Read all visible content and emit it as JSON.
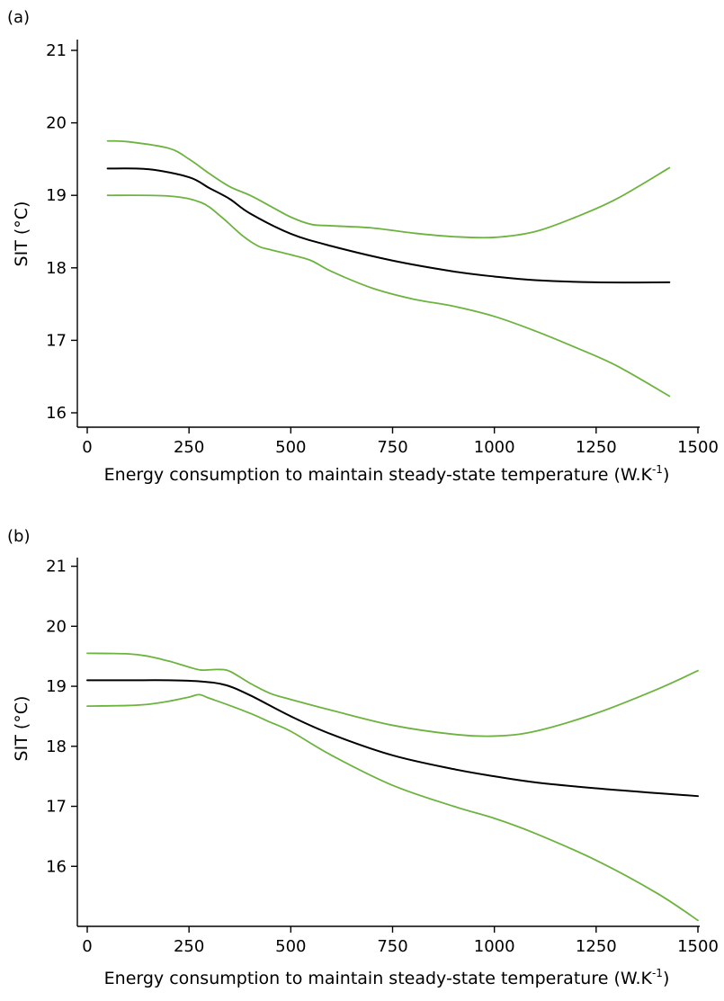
{
  "chart_data": [
    {
      "panel_label": "(a)",
      "type": "line",
      "xlabel": "Energy consumption to maintain steady-state temperature (W.K",
      "xlabel_sup": "-1",
      "xlabel_end": ")",
      "ylabel": "SIT (°C)",
      "xlim": [
        0,
        1500
      ],
      "ylim": [
        16,
        21
      ],
      "xticks": [
        0,
        250,
        500,
        750,
        1000,
        1250,
        1500
      ],
      "yticks": [
        16,
        17,
        18,
        19,
        20,
        21
      ],
      "colors": {
        "estimate": "#000000",
        "bounds": "#6db33f"
      },
      "series": [
        {
          "role": "estimate",
          "x": [
            50,
            150,
            250,
            300,
            350,
            400,
            500,
            600,
            750,
            900,
            1000,
            1100,
            1250,
            1430
          ],
          "y": [
            19.37,
            19.36,
            19.25,
            19.1,
            18.95,
            18.75,
            18.47,
            18.3,
            18.1,
            17.95,
            17.88,
            17.83,
            17.8,
            17.8
          ]
        },
        {
          "role": "upper-bound",
          "x": [
            50,
            100,
            200,
            250,
            300,
            350,
            400,
            450,
            500,
            550,
            600,
            700,
            800,
            900,
            1000,
            1100,
            1200,
            1300,
            1430
          ],
          "y": [
            19.75,
            19.74,
            19.65,
            19.5,
            19.3,
            19.12,
            19.0,
            18.85,
            18.7,
            18.6,
            18.58,
            18.55,
            18.48,
            18.43,
            18.42,
            18.5,
            18.7,
            18.95,
            19.38
          ]
        },
        {
          "role": "lower-bound",
          "x": [
            50,
            200,
            280,
            330,
            380,
            420,
            450,
            500,
            550,
            600,
            700,
            800,
            900,
            1000,
            1100,
            1200,
            1300,
            1430
          ],
          "y": [
            19.0,
            18.99,
            18.9,
            18.7,
            18.45,
            18.3,
            18.25,
            18.18,
            18.1,
            17.95,
            17.72,
            17.57,
            17.47,
            17.33,
            17.13,
            16.9,
            16.65,
            16.23
          ]
        }
      ]
    },
    {
      "panel_label": "(b)",
      "type": "line",
      "xlabel": "Energy consumption to maintain steady-state temperature (W.K",
      "xlabel_sup": "-1",
      "xlabel_end": ")",
      "ylabel": "SIT (°C)",
      "xlim": [
        0,
        1500
      ],
      "ylim": [
        15,
        21
      ],
      "xticks": [
        0,
        250,
        500,
        750,
        1000,
        1250,
        1500
      ],
      "yticks": [
        16,
        17,
        18,
        19,
        20,
        21
      ],
      "colors": {
        "estimate": "#000000",
        "bounds": "#6db33f"
      },
      "series": [
        {
          "role": "estimate",
          "x": [
            0,
            100,
            200,
            280,
            340,
            400,
            500,
            600,
            750,
            900,
            1000,
            1100,
            1250,
            1400,
            1500
          ],
          "y": [
            19.1,
            19.1,
            19.1,
            19.08,
            19.02,
            18.85,
            18.5,
            18.2,
            17.85,
            17.62,
            17.5,
            17.4,
            17.3,
            17.22,
            17.17
          ]
        },
        {
          "role": "upper-bound",
          "x": [
            0,
            100,
            150,
            200,
            250,
            280,
            320,
            350,
            400,
            450,
            500,
            600,
            750,
            900,
            1000,
            1100,
            1250,
            1400,
            1500
          ],
          "y": [
            19.55,
            19.54,
            19.5,
            19.42,
            19.32,
            19.27,
            19.28,
            19.25,
            19.05,
            18.88,
            18.78,
            18.6,
            18.35,
            18.2,
            18.17,
            18.25,
            18.55,
            18.95,
            19.26
          ]
        },
        {
          "role": "lower-bound",
          "x": [
            0,
            100,
            150,
            200,
            250,
            275,
            300,
            350,
            400,
            450,
            500,
            600,
            750,
            900,
            1000,
            1100,
            1250,
            1400,
            1500
          ],
          "y": [
            18.67,
            18.68,
            18.7,
            18.75,
            18.82,
            18.86,
            18.8,
            18.68,
            18.55,
            18.4,
            18.25,
            17.85,
            17.35,
            17.0,
            16.8,
            16.55,
            16.1,
            15.55,
            15.1
          ]
        }
      ]
    }
  ]
}
